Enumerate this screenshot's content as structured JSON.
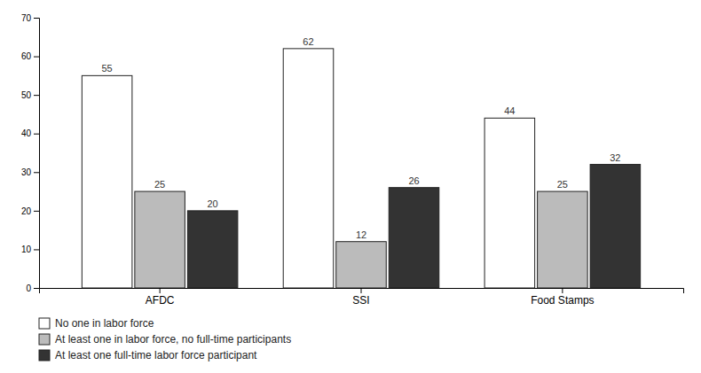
{
  "chart_data": {
    "type": "bar",
    "categories": [
      "AFDC",
      "SSI",
      "Food Stamps"
    ],
    "series": [
      {
        "name": "No one in labor force",
        "color": "#ffffff",
        "values": [
          55,
          62,
          44
        ]
      },
      {
        "name": "At least one in labor force, no full-time participants",
        "color": "#bbbbbb",
        "values": [
          25,
          12,
          25
        ]
      },
      {
        "name": "At least one full-time labor force participant",
        "color": "#333333",
        "values": [
          20,
          26,
          32
        ]
      }
    ],
    "ylim": [
      0,
      70
    ],
    "yticks": [
      0,
      10,
      20,
      30,
      40,
      50,
      60,
      70
    ],
    "data_labels": true,
    "grid": false,
    "legend": "bottom"
  }
}
